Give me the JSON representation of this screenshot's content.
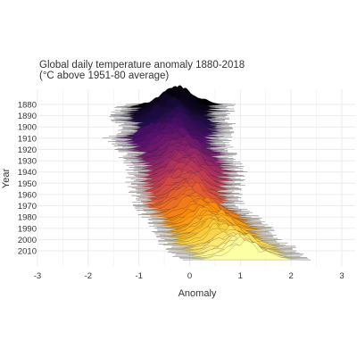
{
  "chart_data": {
    "type": "ridgeline",
    "title": "Global daily temperature anomaly 1880-2018",
    "subtitle": "(°C above 1951-80 average)",
    "xlabel": "Anomaly",
    "ylabel": "Year",
    "xlim": [
      -3,
      3
    ],
    "x_ticks": [
      -3,
      -2,
      -1,
      0,
      1,
      2,
      3
    ],
    "y_ticks": [
      1880,
      1890,
      1900,
      1910,
      1920,
      1930,
      1940,
      1950,
      1960,
      1970,
      1980,
      1990,
      2000,
      2010
    ],
    "year_range": [
      1880,
      2018
    ],
    "grid": true,
    "color_scale": "inferno",
    "colors": {
      "start": "#000004",
      "mid": "#bc3754",
      "end": "#fcffa4",
      "grid": "#ebebeb"
    },
    "series": [
      {
        "year": 1880,
        "mean": -0.3,
        "sd": 0.3
      },
      {
        "year": 1890,
        "mean": -0.35,
        "sd": 0.32
      },
      {
        "year": 1900,
        "mean": -0.25,
        "sd": 0.3
      },
      {
        "year": 1910,
        "mean": -0.45,
        "sd": 0.32
      },
      {
        "year": 1920,
        "mean": -0.3,
        "sd": 0.3
      },
      {
        "year": 1930,
        "mean": -0.2,
        "sd": 0.3
      },
      {
        "year": 1940,
        "mean": -0.05,
        "sd": 0.3
      },
      {
        "year": 1950,
        "mean": -0.1,
        "sd": 0.3
      },
      {
        "year": 1960,
        "mean": -0.05,
        "sd": 0.28
      },
      {
        "year": 1970,
        "mean": 0.0,
        "sd": 0.28
      },
      {
        "year": 1980,
        "mean": 0.2,
        "sd": 0.3
      },
      {
        "year": 1990,
        "mean": 0.4,
        "sd": 0.32
      },
      {
        "year": 2000,
        "mean": 0.6,
        "sd": 0.32
      },
      {
        "year": 2010,
        "mean": 0.85,
        "sd": 0.35
      },
      {
        "year": 2018,
        "mean": 1.0,
        "sd": 0.35
      }
    ]
  }
}
